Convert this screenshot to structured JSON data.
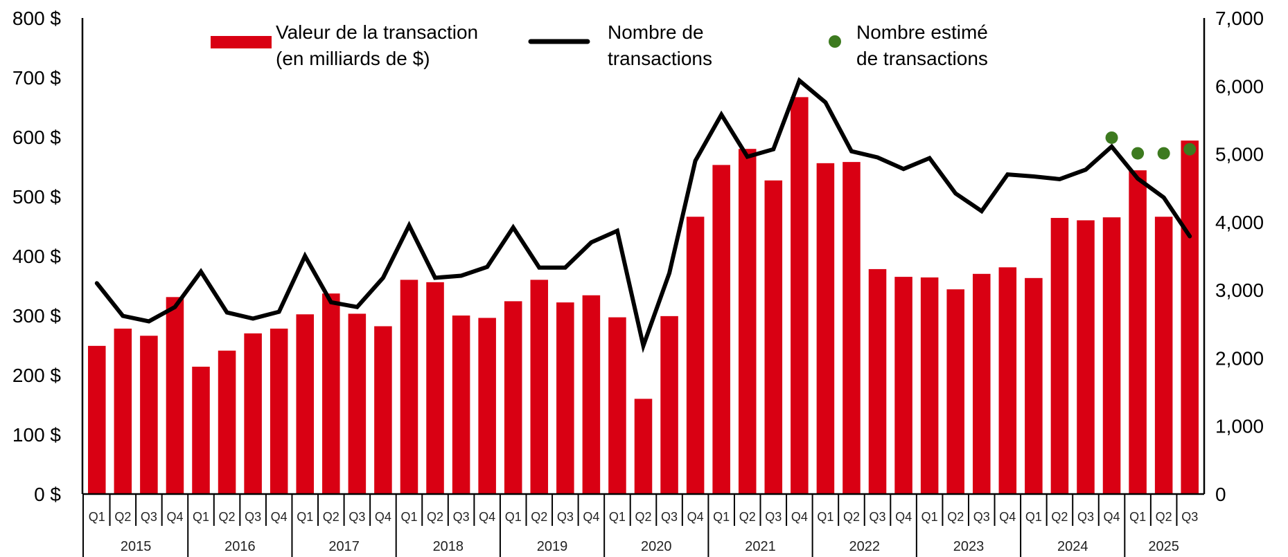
{
  "chart_data": {
    "type": "bar",
    "title": "",
    "xlabel": "",
    "ylabel": "",
    "ylabel_right": "",
    "ylim": [
      0,
      800
    ],
    "ylim_right": [
      0,
      7000
    ],
    "grid": false,
    "legend_position": "top",
    "left_ticks": [
      "0 $",
      "100 $",
      "200 $",
      "300 $",
      "400 $",
      "500 $",
      "600 $",
      "700 $",
      "800 $"
    ],
    "right_ticks": [
      "0",
      "1,000",
      "2,000",
      "3,000",
      "4,000",
      "5,000",
      "6,000",
      "7,000"
    ],
    "years": [
      "2015",
      "2016",
      "2017",
      "2018",
      "2019",
      "2020",
      "2021",
      "2022",
      "2023",
      "2024",
      "2025"
    ],
    "categories": [
      "Q1 2015",
      "Q2 2015",
      "Q3 2015",
      "Q4 2015",
      "Q1 2016",
      "Q2 2016",
      "Q3 2016",
      "Q4 2016",
      "Q1 2017",
      "Q2 2017",
      "Q3 2017",
      "Q4 2017",
      "Q1 2018",
      "Q2 2018",
      "Q3 2018",
      "Q4 2018",
      "Q1 2019",
      "Q2 2019",
      "Q3 2019",
      "Q4 2019",
      "Q1 2020",
      "Q2 2020",
      "Q3 2020",
      "Q4 2020",
      "Q1 2021",
      "Q2 2021",
      "Q3 2021",
      "Q4 2021",
      "Q1 2022",
      "Q2 2022",
      "Q3 2022",
      "Q4 2022",
      "Q1 2023",
      "Q2 2023",
      "Q3 2023",
      "Q4 2023",
      "Q1 2024",
      "Q2 2024",
      "Q3 2024",
      "Q4 2024",
      "Q1 2025",
      "Q2 2025",
      "Q3 2025"
    ],
    "quarter_labels": [
      "Q1",
      "Q2",
      "Q3",
      "Q4",
      "Q1",
      "Q2",
      "Q3",
      "Q4",
      "Q1",
      "Q2",
      "Q3",
      "Q4",
      "Q1",
      "Q2",
      "Q3",
      "Q4",
      "Q1",
      "Q2",
      "Q3",
      "Q4",
      "Q1",
      "Q2",
      "Q3",
      "Q4",
      "Q1",
      "Q2",
      "Q3",
      "Q4",
      "Q1",
      "Q2",
      "Q3",
      "Q4",
      "Q1",
      "Q2",
      "Q3",
      "Q4",
      "Q1",
      "Q2",
      "Q3",
      "Q4",
      "Q1",
      "Q2",
      "Q3"
    ],
    "series": [
      {
        "name": "Valeur de la transaction (en milliards de $)",
        "type": "bar",
        "axis": "left",
        "color": "#d90013",
        "values": [
          249,
          278,
          266,
          331,
          214,
          241,
          270,
          278,
          302,
          337,
          303,
          282,
          360,
          356,
          300,
          296,
          324,
          360,
          322,
          334,
          297,
          160,
          299,
          466,
          553,
          580,
          527,
          667,
          556,
          558,
          378,
          365,
          364,
          344,
          370,
          381,
          363,
          464,
          460,
          465,
          544,
          466,
          594
        ]
      },
      {
        "name": "Nombre de transactions",
        "type": "line",
        "axis": "right",
        "color": "#000000",
        "values": [
          3100,
          2620,
          2540,
          2750,
          3270,
          2670,
          2580,
          2680,
          3500,
          2820,
          2750,
          3180,
          3950,
          3180,
          3210,
          3340,
          3920,
          3330,
          3330,
          3700,
          3870,
          2180,
          3250,
          4900,
          5580,
          4960,
          5070,
          6080,
          5760,
          5040,
          4950,
          4780,
          4940,
          4420,
          4160,
          4700,
          4670,
          4630,
          4770,
          5110,
          4640,
          4360,
          3790
        ]
      },
      {
        "name": "Nombre estimé de transactions",
        "type": "scatter",
        "axis": "right",
        "color": "#3d7a1f",
        "x": [
          "Q4 2024",
          "Q1 2025",
          "Q2 2025",
          "Q3 2025"
        ],
        "values": [
          5240,
          5010,
          5010,
          5070
        ]
      }
    ]
  },
  "legend": {
    "value_line1": "Valeur de la transaction",
    "value_line2": "(en milliards de $)",
    "count_line1": "Nombre de",
    "count_line2": "transactions",
    "estimate_line1": "Nombre estimé",
    "estimate_line2": "de transactions"
  }
}
